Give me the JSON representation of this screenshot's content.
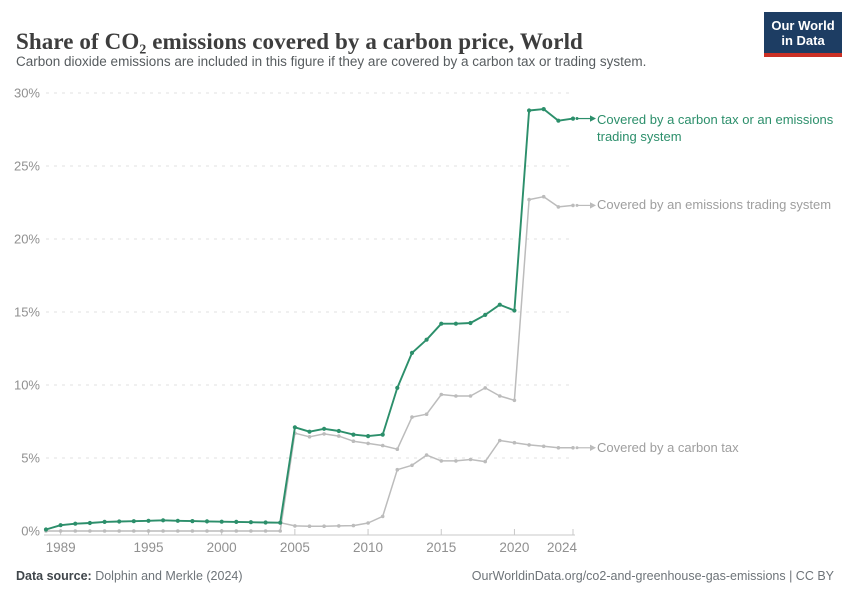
{
  "header": {
    "title": "Share of CO₂ emissions covered by a carbon price, World",
    "subtitle": "Carbon dioxide emissions are included in this figure if they are covered by a carbon tax or trading system.",
    "logo": {
      "line1": "Our World",
      "line2": "in Data"
    }
  },
  "footer": {
    "source_label": "Data source:",
    "source_text": " Dolphin and Merkle (2024)",
    "url_text": "OurWorldinData.org/co2-and-greenhouse-gas-emissions | CC BY"
  },
  "colors": {
    "total_series": "#2c8f6b",
    "gray_series": "#bcbcbc",
    "gray_label": "#9e9e9e",
    "gridline": "#e2e2e2",
    "axis": "#c8c8c8",
    "tick_label": "#909090"
  },
  "chart_data": {
    "type": "line",
    "title": "Share of CO₂ emissions covered by a carbon price, World",
    "xlabel": "",
    "ylabel": "",
    "ylim": [
      0,
      30
    ],
    "grid": "horizontal-dashed",
    "legend_position": "right-of-line-end",
    "x": [
      1988,
      1989,
      1990,
      1991,
      1992,
      1993,
      1994,
      1995,
      1996,
      1997,
      1998,
      1999,
      2000,
      2001,
      2002,
      2003,
      2004,
      2005,
      2006,
      2007,
      2008,
      2009,
      2010,
      2011,
      2012,
      2013,
      2014,
      2015,
      2016,
      2017,
      2018,
      2019,
      2020,
      2021,
      2022,
      2023,
      2024
    ],
    "yticks": [
      0,
      5,
      10,
      15,
      20,
      25,
      30
    ],
    "ytick_labels": [
      "0%",
      "5%",
      "10%",
      "15%",
      "20%",
      "25%",
      "30%"
    ],
    "xticks": [
      1989,
      1995,
      2000,
      2005,
      2010,
      2015,
      2020,
      2024
    ],
    "xtick_labels": [
      "1989",
      "1995",
      "2000",
      "2005",
      "2010",
      "2015",
      "2020",
      "2024"
    ],
    "series": [
      {
        "id": "ets",
        "name": "Covered by an emissions trading system",
        "color": "#bcbcbc",
        "values": [
          0,
          0,
          0,
          0,
          0,
          0,
          0,
          0,
          0,
          0,
          0,
          0,
          0,
          0,
          0,
          0,
          0,
          6.7,
          6.45,
          6.65,
          6.5,
          6.15,
          6.0,
          5.85,
          5.6,
          7.8,
          8.0,
          9.35,
          9.25,
          9.25,
          9.8,
          9.25,
          8.95,
          22.7,
          22.9,
          22.2,
          22.3
        ]
      },
      {
        "id": "tax",
        "name": "Covered by a carbon tax",
        "color": "#bcbcbc",
        "values": [
          0.1,
          0.4,
          0.5,
          0.55,
          0.62,
          0.65,
          0.67,
          0.7,
          0.73,
          0.7,
          0.68,
          0.66,
          0.64,
          0.62,
          0.6,
          0.58,
          0.57,
          0.35,
          0.33,
          0.33,
          0.35,
          0.37,
          0.55,
          1.0,
          4.2,
          4.5,
          5.2,
          4.8,
          4.8,
          4.9,
          4.75,
          6.2,
          6.05,
          5.9,
          5.8,
          5.7,
          5.7
        ]
      },
      {
        "id": "total",
        "name": "Covered by a carbon tax or an emissions trading system",
        "color": "#2c8f6b",
        "values": [
          0.1,
          0.4,
          0.5,
          0.55,
          0.62,
          0.65,
          0.67,
          0.7,
          0.73,
          0.7,
          0.68,
          0.66,
          0.64,
          0.62,
          0.6,
          0.58,
          0.57,
          7.1,
          6.8,
          7.0,
          6.85,
          6.6,
          6.5,
          6.6,
          9.8,
          12.2,
          13.1,
          14.2,
          14.2,
          14.25,
          14.8,
          15.5,
          15.1,
          28.8,
          28.9,
          28.1,
          28.25
        ]
      }
    ]
  }
}
